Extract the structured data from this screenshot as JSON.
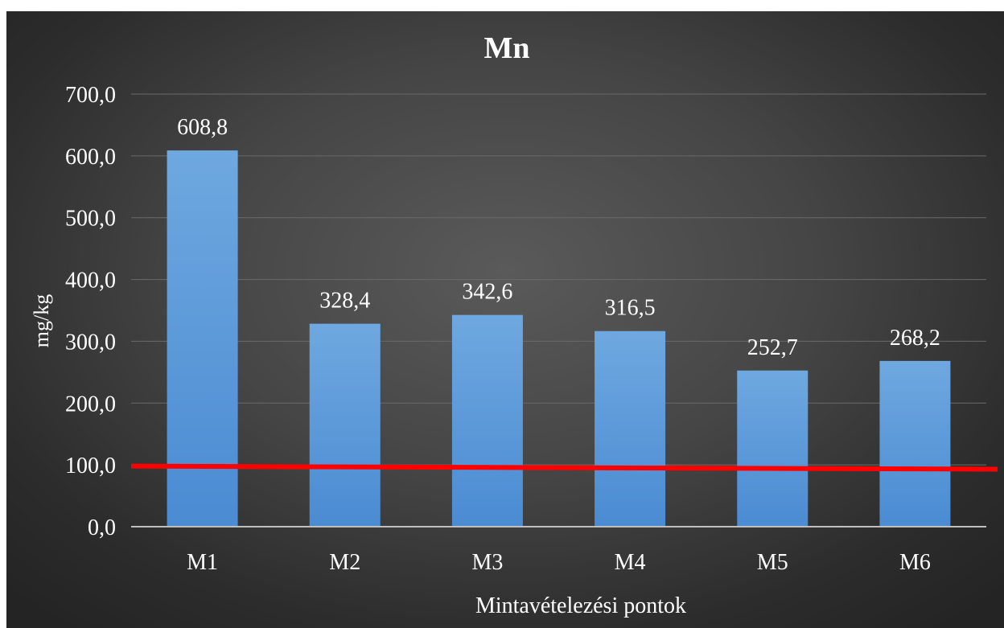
{
  "chart_data": {
    "type": "bar",
    "title": "Mn",
    "xlabel": "Mintavételezési pontok",
    "ylabel": "mg/kg",
    "categories": [
      "M1",
      "M2",
      "M3",
      "M4",
      "M5",
      "M6"
    ],
    "values": [
      608.8,
      328.4,
      342.6,
      316.5,
      252.7,
      268.2
    ],
    "data_labels": [
      "608,8",
      "328,4",
      "342,6",
      "316,5",
      "252,7",
      "268,2"
    ],
    "ylim": [
      0,
      700
    ],
    "yticks": [
      0,
      100,
      200,
      300,
      400,
      500,
      600,
      700
    ],
    "ytick_labels": [
      "0,0",
      "100,0",
      "200,0",
      "300,0",
      "400,0",
      "500,0",
      "600,0",
      "700,0"
    ],
    "grid": true,
    "legend": "none",
    "reference_line": {
      "value_start": 98,
      "value_end": 93,
      "color": "#ff0000"
    },
    "colors": {
      "bar_top": "#6fa8e0",
      "bar_bottom": "#4a8bd2",
      "text": "#ffffff",
      "grid": "#6a6a6a",
      "axis": "#bfbfbf"
    }
  }
}
